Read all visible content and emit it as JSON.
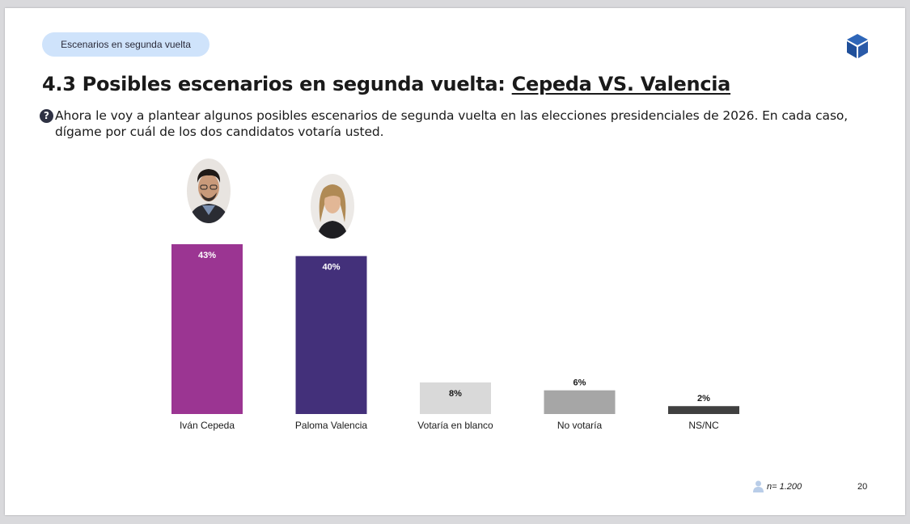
{
  "section_tag": "Escenarios en segunda vuelta",
  "title": {
    "prefix": "4.3 Posibles escenarios en segunda vuelta: ",
    "highlight": "Cepeda VS. Valencia"
  },
  "question": "Ahora le voy a plantear algunos posibles escenarios de segunda vuelta en las elecciones presidenciales de 2026. En cada caso, dígame por cuál de los dos candidatos votaría usted.",
  "icons": {
    "question": "question-circle-icon",
    "logo": "cube-logo-icon",
    "sample": "person-icon"
  },
  "chart_data": {
    "type": "bar",
    "categories": [
      "Iván Cepeda",
      "Paloma Valencia",
      "Votaría en blanco",
      "No votaría",
      "NS/NC"
    ],
    "values": [
      43,
      40,
      8,
      6,
      2
    ],
    "value_labels": [
      "43%",
      "40%",
      "8%",
      "6%",
      "2%"
    ],
    "colors": [
      "#9b3592",
      "#43307a",
      "#d9d9d9",
      "#a6a6a6",
      "#404040"
    ],
    "ylim": [
      0,
      43
    ],
    "title": "",
    "xlabel": "",
    "ylabel": ""
  },
  "footer": {
    "sample": "n= 1.200",
    "page": "20"
  }
}
